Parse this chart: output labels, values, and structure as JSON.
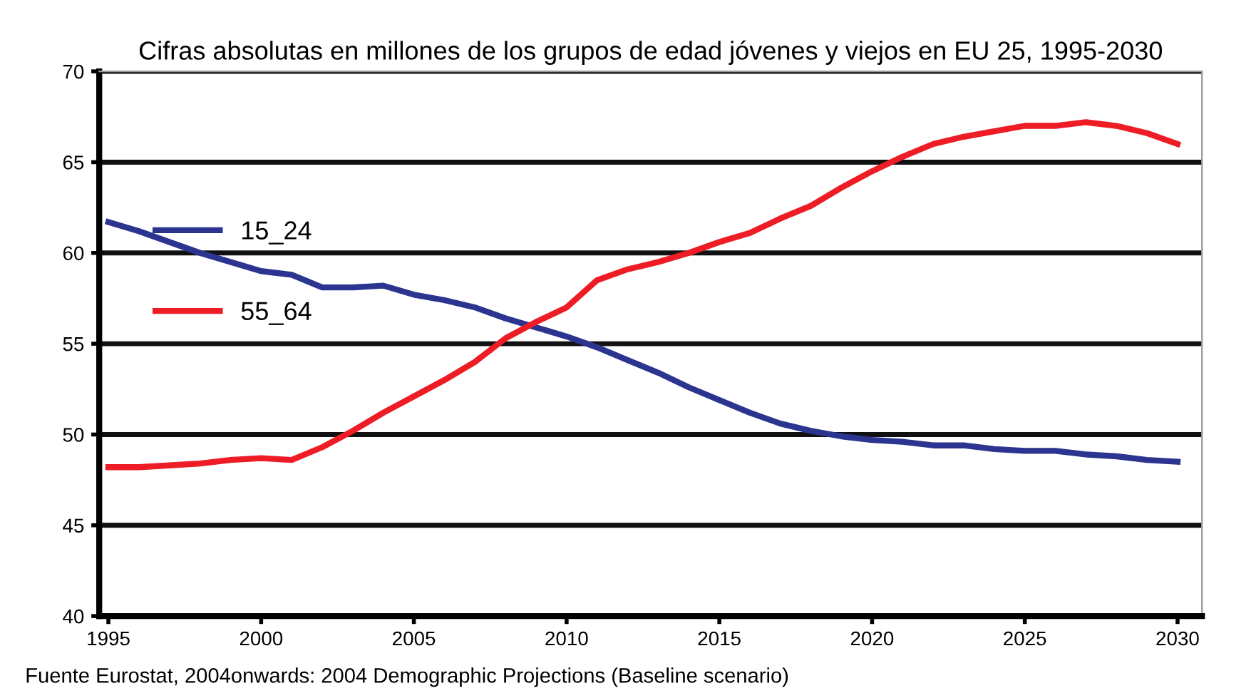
{
  "chart_data": {
    "type": "line",
    "title": "Cifras absolutas en millones de los grupos de edad jóvenes y viejos en EU 25, 1995-2030",
    "x": [
      1995,
      1996,
      1997,
      1998,
      1999,
      2000,
      2001,
      2002,
      2003,
      2004,
      2005,
      2006,
      2007,
      2008,
      2009,
      2010,
      2011,
      2012,
      2013,
      2014,
      2015,
      2016,
      2017,
      2018,
      2019,
      2020,
      2021,
      2022,
      2023,
      2024,
      2025,
      2026,
      2027,
      2028,
      2029,
      2030
    ],
    "series": [
      {
        "name": "15_24",
        "color": "#2b3590",
        "values": [
          61.7,
          61.2,
          60.6,
          60.0,
          59.5,
          59.0,
          58.8,
          58.1,
          58.1,
          58.2,
          57.7,
          57.4,
          57.0,
          56.4,
          55.9,
          55.4,
          54.8,
          54.1,
          53.4,
          52.6,
          51.9,
          51.2,
          50.6,
          50.2,
          49.9,
          49.7,
          49.6,
          49.4,
          49.4,
          49.2,
          49.1,
          49.1,
          48.9,
          48.8,
          48.6,
          48.5
        ]
      },
      {
        "name": "55_64",
        "color": "#ee1c25",
        "values": [
          48.2,
          48.2,
          48.3,
          48.4,
          48.6,
          48.7,
          48.6,
          49.3,
          50.2,
          51.2,
          52.1,
          53.0,
          54.0,
          55.3,
          56.2,
          57.0,
          58.5,
          59.1,
          59.5,
          60.0,
          60.6,
          61.1,
          61.9,
          62.6,
          63.6,
          64.5,
          65.3,
          66.0,
          66.4,
          66.7,
          67.0,
          67.0,
          67.2,
          67.0,
          66.6,
          66.0
        ]
      }
    ],
    "xlim": [
      1994.7,
      2030.8
    ],
    "xticks": [
      1995,
      2000,
      2005,
      2010,
      2015,
      2020,
      2025,
      2030
    ],
    "ylim": [
      40,
      70
    ],
    "yticks": [
      40,
      45,
      50,
      55,
      60,
      65,
      70
    ],
    "grid": "y",
    "legend": "left",
    "marker": "none",
    "line_style": "solid",
    "annotations": [
      "Fuente Eurostat, 2004onwards: 2004 Demographic Projections (Baseline scenario)"
    ]
  }
}
